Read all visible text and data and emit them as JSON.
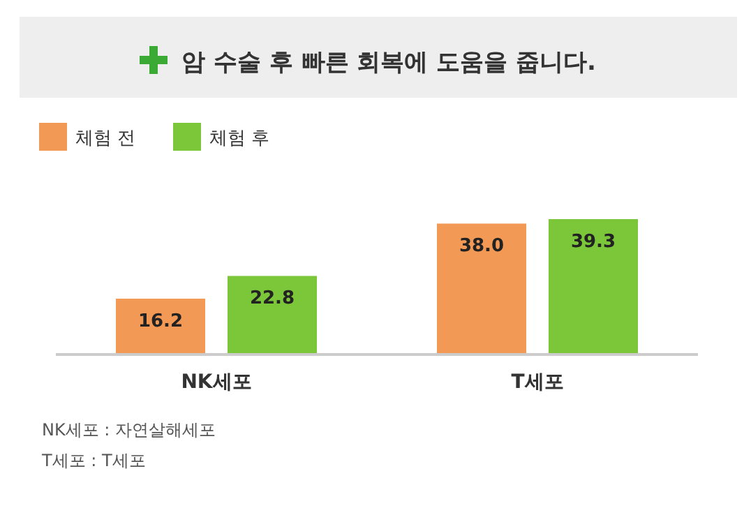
{
  "chart_data": {
    "type": "bar",
    "title": "암 수술 후 빠른 회복에 도움을 줍니다.",
    "categories": [
      "NK세포",
      "T세포"
    ],
    "series": [
      {
        "name": "체험 전",
        "color": "#f29a55",
        "values": [
          16.2,
          38.0
        ],
        "value_labels": [
          "16.2",
          "38.0"
        ]
      },
      {
        "name": "체험 후",
        "color": "#7cc63a",
        "values": [
          22.8,
          39.3
        ],
        "value_labels": [
          "22.8",
          "39.3"
        ]
      }
    ],
    "legend": "top left",
    "annotations": [
      "NK세포 : 자연살해세포",
      "T세포 : T세포"
    ]
  }
}
